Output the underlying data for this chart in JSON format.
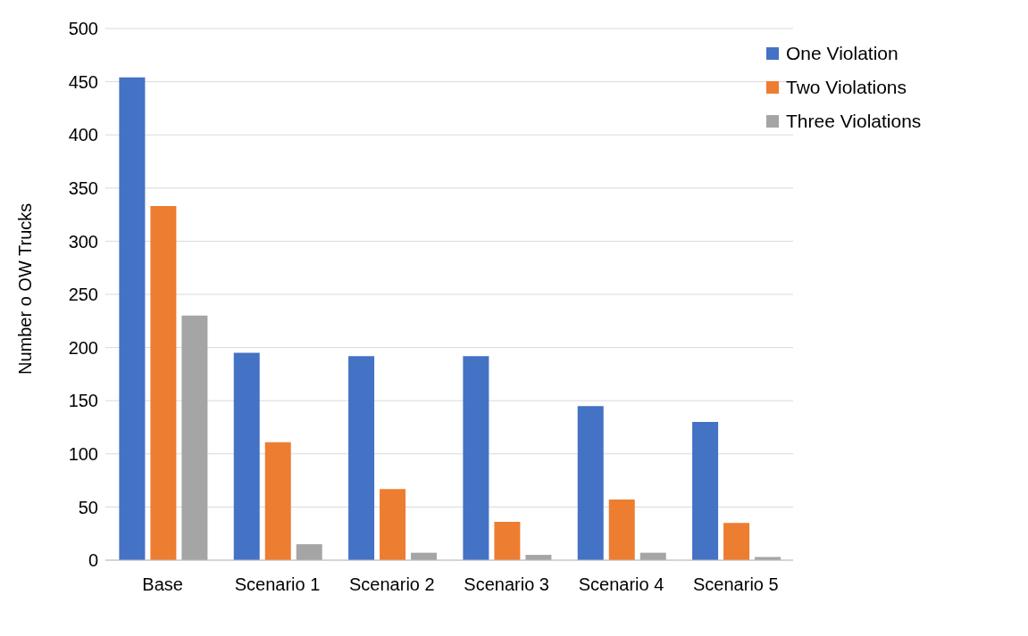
{
  "chart_data": {
    "type": "bar",
    "ylabel": "Number o OW Trucks",
    "categories": [
      "Base",
      "Scenario 1",
      "Scenario 2",
      "Scenario 3",
      "Scenario 4",
      "Scenario 5"
    ],
    "series": [
      {
        "name": "One Violation",
        "color": "#4472c4",
        "values": [
          454,
          195,
          192,
          192,
          145,
          130
        ]
      },
      {
        "name": "Two Violations",
        "color": "#ed7d31",
        "values": [
          333,
          111,
          67,
          36,
          57,
          35
        ]
      },
      {
        "name": "Three Violations",
        "color": "#a5a5a5",
        "values": [
          230,
          15,
          7,
          5,
          7,
          3
        ]
      }
    ],
    "ylim": [
      0,
      500
    ],
    "yticks": [
      0,
      50,
      100,
      150,
      200,
      250,
      300,
      350,
      400,
      450,
      500
    ],
    "grid": "y",
    "legend": "top right"
  }
}
